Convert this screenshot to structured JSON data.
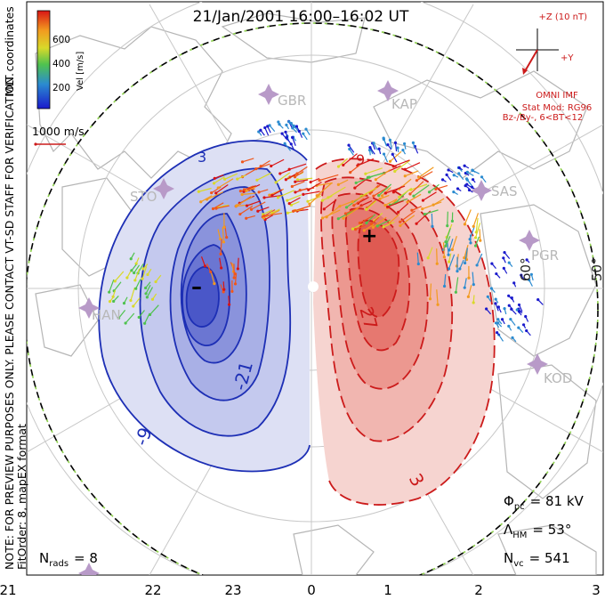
{
  "title": "21/Jan/2001 16:00–16:02 UT",
  "side_note": "NOTE: FOR PREVIEW PURPOSES ONLY. PLEASE CONTACT VT-SD STAFF FOR VERIFICATION.",
  "fit_note": "FitOrder: 8, mapEX format",
  "coord_label": "MLT coordinates",
  "colorbar": {
    "title": "Vel [m/s]",
    "ticks": [
      "600",
      "400",
      "200"
    ]
  },
  "scale_vector_label": "1000 m/s",
  "imf": {
    "z_label": "+Z (10 nT)",
    "y_label": "+Y",
    "source": "OMNI IMF",
    "model": "Stat Mod: RG96",
    "condition": "Bz-/By-, 6<BT<12"
  },
  "stations": [
    "GBR",
    "KAP",
    "STO",
    "SAS",
    "PGR",
    "HAN",
    "KOD"
  ],
  "lat_labels": [
    "60°",
    "50°"
  ],
  "contour_labels": [
    "-9",
    "-21",
    "27",
    "3",
    "3",
    "9"
  ],
  "extrema": {
    "min_symbol": "–",
    "max_symbol": "+"
  },
  "stats": {
    "phi_label": "Φ",
    "phi_sub": "pc",
    "phi_value": "= 81 kV",
    "lambda_label": "Λ",
    "lambda_sub": "HM",
    "lambda_value": "= 53°",
    "nvc_label": "N",
    "nvc_sub": "vc",
    "nvc_value": "= 541",
    "nrads_label": "N",
    "nrads_sub": "rads",
    "nrads_value": "= 8"
  },
  "mlt_ticks": [
    "21",
    "22",
    "23",
    "0",
    "1",
    "2",
    "3"
  ],
  "colors": {
    "negative_cell": "#2a36b8",
    "positive_cell": "#cc1b1b",
    "boundary_dash": "#8fd14f",
    "imf_arrow": "#cc1b1b"
  }
}
